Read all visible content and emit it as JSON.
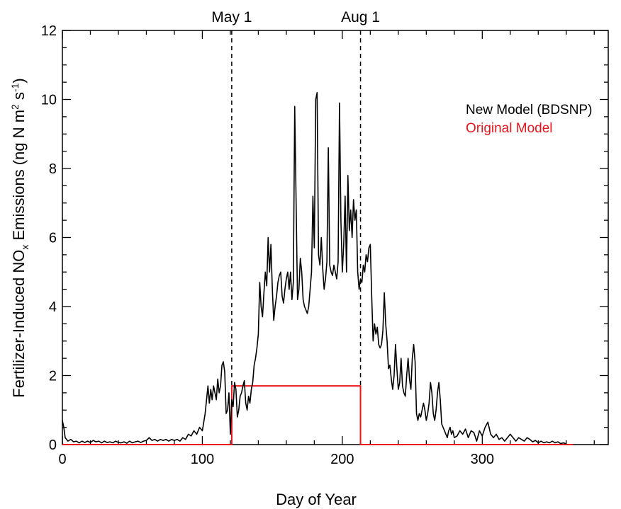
{
  "chart_data": {
    "type": "line",
    "xlabel": "Day of Year",
    "ylabel": "Fertilizer-Induced NOx Emissions (ng N m2 s-1)",
    "ylabel_parts": {
      "main": "Fertilizer-Induced  NO",
      "sub": "x",
      "mid": " Emissions (ng N m",
      "sup1": "2",
      "mid2": " s",
      "sup2": "-1",
      "end": ")"
    },
    "xlim": [
      0,
      390
    ],
    "ylim": [
      0,
      12
    ],
    "x_ticks": [
      0,
      100,
      200,
      300
    ],
    "x_tick_labels": [
      "0",
      "100",
      "200",
      "300"
    ],
    "y_ticks": [
      0,
      2,
      4,
      6,
      8,
      10,
      12
    ],
    "y_tick_labels": [
      "0",
      "2",
      "4",
      "6",
      "8",
      "10",
      "12"
    ],
    "grid": false,
    "legend_position": "top-right",
    "markers": [
      {
        "label": "May 1",
        "x": 121
      },
      {
        "label": "Aug 1",
        "x": 213
      }
    ],
    "series": [
      {
        "name": "New Model (BDSNP)",
        "color": "#000000",
        "points": [
          [
            0,
            0.7
          ],
          [
            1,
            0.5
          ],
          [
            2,
            0.2
          ],
          [
            4,
            0.1
          ],
          [
            6,
            0.15
          ],
          [
            8,
            0.08
          ],
          [
            10,
            0.1
          ],
          [
            12,
            0.05
          ],
          [
            14,
            0.1
          ],
          [
            16,
            0.06
          ],
          [
            18,
            0.1
          ],
          [
            20,
            0.06
          ],
          [
            22,
            0.12
          ],
          [
            24,
            0.08
          ],
          [
            26,
            0.1
          ],
          [
            28,
            0.05
          ],
          [
            30,
            0.1
          ],
          [
            32,
            0.06
          ],
          [
            34,
            0.08
          ],
          [
            36,
            0.05
          ],
          [
            38,
            0.1
          ],
          [
            40,
            0.06
          ],
          [
            42,
            0.05
          ],
          [
            44,
            0.08
          ],
          [
            46,
            0.04
          ],
          [
            48,
            0.1
          ],
          [
            50,
            0.05
          ],
          [
            52,
            0.08
          ],
          [
            54,
            0.1
          ],
          [
            56,
            0.06
          ],
          [
            58,
            0.1
          ],
          [
            60,
            0.12
          ],
          [
            62,
            0.2
          ],
          [
            64,
            0.12
          ],
          [
            66,
            0.15
          ],
          [
            68,
            0.1
          ],
          [
            70,
            0.15
          ],
          [
            72,
            0.12
          ],
          [
            74,
            0.15
          ],
          [
            76,
            0.1
          ],
          [
            78,
            0.15
          ],
          [
            80,
            0.12
          ],
          [
            82,
            0.15
          ],
          [
            84,
            0.1
          ],
          [
            86,
            0.2
          ],
          [
            88,
            0.15
          ],
          [
            90,
            0.3
          ],
          [
            92,
            0.25
          ],
          [
            94,
            0.4
          ],
          [
            96,
            0.3
          ],
          [
            98,
            0.5
          ],
          [
            100,
            0.4
          ],
          [
            102,
            0.9
          ],
          [
            104,
            1.7
          ],
          [
            105,
            1.2
          ],
          [
            106,
            1.6
          ],
          [
            107,
            1.3
          ],
          [
            108,
            1.7
          ],
          [
            109,
            1.5
          ],
          [
            110,
            1.3
          ],
          [
            111,
            1.9
          ],
          [
            112,
            1.5
          ],
          [
            113,
            1.7
          ],
          [
            114,
            2.3
          ],
          [
            115,
            2.4
          ],
          [
            116,
            2.1
          ],
          [
            117,
            0.9
          ],
          [
            118,
            1.0
          ],
          [
            119,
            1.5
          ],
          [
            120,
            0.3
          ],
          [
            121,
            1.3
          ],
          [
            122,
            1.1
          ],
          [
            123,
            1.8
          ],
          [
            124,
            1.6
          ],
          [
            125,
            0.8
          ],
          [
            126,
            1.0
          ],
          [
            127,
            1.4
          ],
          [
            128,
            1.5
          ],
          [
            129,
            1.7
          ],
          [
            130,
            1.85
          ],
          [
            131,
            1.2
          ],
          [
            132,
            1.0
          ],
          [
            133,
            1.4
          ],
          [
            134,
            1.2
          ],
          [
            135,
            1.6
          ],
          [
            136,
            1.8
          ],
          [
            137,
            2.3
          ],
          [
            138,
            2.5
          ],
          [
            139,
            2.8
          ],
          [
            140,
            3.2
          ],
          [
            141,
            4.7
          ],
          [
            142,
            4.0
          ],
          [
            143,
            3.7
          ],
          [
            144,
            4.4
          ],
          [
            145,
            5.0
          ],
          [
            146,
            4.6
          ],
          [
            147,
            6.0
          ],
          [
            148,
            5.0
          ],
          [
            149,
            5.8
          ],
          [
            150,
            4.5
          ],
          [
            151,
            3.6
          ],
          [
            152,
            4.0
          ],
          [
            153,
            4.3
          ],
          [
            154,
            4.7
          ],
          [
            155,
            4.9
          ],
          [
            156,
            5.0
          ],
          [
            157,
            4.3
          ],
          [
            158,
            4.1
          ],
          [
            159,
            4.5
          ],
          [
            160,
            4.8
          ],
          [
            161,
            5.0
          ],
          [
            162,
            4.5
          ],
          [
            163,
            5.0
          ],
          [
            164,
            4.2
          ],
          [
            165,
            4.7
          ],
          [
            166,
            9.8
          ],
          [
            167,
            7.0
          ],
          [
            168,
            4.2
          ],
          [
            169,
            4.5
          ],
          [
            170,
            5.4
          ],
          [
            171,
            5.0
          ],
          [
            172,
            4.2
          ],
          [
            173,
            4.0
          ],
          [
            174,
            3.9
          ],
          [
            175,
            3.8
          ],
          [
            176,
            4.0
          ],
          [
            177,
            4.5
          ],
          [
            178,
            5.0
          ],
          [
            179,
            7.2
          ],
          [
            180,
            5.7
          ],
          [
            181,
            10.0
          ],
          [
            182,
            10.2
          ],
          [
            183,
            5.5
          ],
          [
            184,
            5.2
          ],
          [
            185,
            6.0
          ],
          [
            186,
            5.1
          ],
          [
            187,
            4.5
          ],
          [
            188,
            4.8
          ],
          [
            189,
            5.3
          ],
          [
            190,
            8.6
          ],
          [
            191,
            5.2
          ],
          [
            192,
            5.0
          ],
          [
            193,
            4.9
          ],
          [
            194,
            5.2
          ],
          [
            195,
            5.0
          ],
          [
            196,
            4.8
          ],
          [
            197,
            5.3
          ],
          [
            198,
            9.9
          ],
          [
            199,
            6.5
          ],
          [
            200,
            5.0
          ],
          [
            201,
            5.8
          ],
          [
            202,
            7.2
          ],
          [
            203,
            5.0
          ],
          [
            204,
            7.8
          ],
          [
            205,
            6.2
          ],
          [
            206,
            6.8
          ],
          [
            207,
            6.0
          ],
          [
            208,
            7.1
          ],
          [
            209,
            6.5
          ],
          [
            210,
            6.8
          ],
          [
            211,
            5.0
          ],
          [
            212,
            4.5
          ],
          [
            213,
            4.8
          ],
          [
            214,
            4.7
          ],
          [
            215,
            5.2
          ],
          [
            216,
            5.0
          ],
          [
            217,
            5.5
          ],
          [
            218,
            5.3
          ],
          [
            219,
            5.7
          ],
          [
            220,
            5.8
          ],
          [
            221,
            4.3
          ],
          [
            222,
            3.0
          ],
          [
            223,
            3.5
          ],
          [
            224,
            3.2
          ],
          [
            225,
            3.4
          ],
          [
            226,
            2.9
          ],
          [
            227,
            2.8
          ],
          [
            228,
            2.9
          ],
          [
            229,
            3.3
          ],
          [
            230,
            4.4
          ],
          [
            231,
            3.5
          ],
          [
            232,
            3.0
          ],
          [
            233,
            2.2
          ],
          [
            234,
            2.3
          ],
          [
            235,
            1.9
          ],
          [
            236,
            1.6
          ],
          [
            237,
            2.0
          ],
          [
            238,
            2.9
          ],
          [
            239,
            2.2
          ],
          [
            240,
            1.6
          ],
          [
            241,
            1.8
          ],
          [
            242,
            2.5
          ],
          [
            243,
            1.7
          ],
          [
            244,
            1.5
          ],
          [
            245,
            1.4
          ],
          [
            246,
            2.0
          ],
          [
            247,
            2.5
          ],
          [
            248,
            1.9
          ],
          [
            249,
            1.6
          ],
          [
            250,
            2.5
          ],
          [
            251,
            2.9
          ],
          [
            252,
            2.4
          ],
          [
            253,
            0.9
          ],
          [
            254,
            0.7
          ],
          [
            255,
            0.9
          ],
          [
            256,
            0.8
          ],
          [
            257,
            1.0
          ],
          [
            258,
            1.2
          ],
          [
            259,
            1.0
          ],
          [
            260,
            0.7
          ],
          [
            261,
            0.9
          ],
          [
            262,
            1.2
          ],
          [
            263,
            1.8
          ],
          [
            264,
            1.5
          ],
          [
            265,
            0.9
          ],
          [
            266,
            0.7
          ],
          [
            267,
            1.0
          ],
          [
            268,
            1.5
          ],
          [
            269,
            1.8
          ],
          [
            270,
            1.3
          ],
          [
            271,
            0.6
          ],
          [
            272,
            0.5
          ],
          [
            273,
            0.4
          ],
          [
            274,
            0.3
          ],
          [
            275,
            0.2
          ],
          [
            276,
            0.4
          ],
          [
            277,
            0.5
          ],
          [
            278,
            0.3
          ],
          [
            279,
            0.4
          ],
          [
            280,
            0.2
          ],
          [
            282,
            0.25
          ],
          [
            284,
            0.4
          ],
          [
            286,
            0.3
          ],
          [
            288,
            0.45
          ],
          [
            290,
            0.2
          ],
          [
            292,
            0.4
          ],
          [
            294,
            0.35
          ],
          [
            296,
            0.1
          ],
          [
            298,
            0.4
          ],
          [
            300,
            0.25
          ],
          [
            302,
            0.5
          ],
          [
            304,
            0.65
          ],
          [
            306,
            0.3
          ],
          [
            308,
            0.2
          ],
          [
            310,
            0.3
          ],
          [
            312,
            0.15
          ],
          [
            314,
            0.2
          ],
          [
            316,
            0.1
          ],
          [
            318,
            0.2
          ],
          [
            320,
            0.3
          ],
          [
            322,
            0.2
          ],
          [
            324,
            0.1
          ],
          [
            326,
            0.2
          ],
          [
            328,
            0.15
          ],
          [
            330,
            0.1
          ],
          [
            332,
            0.2
          ],
          [
            334,
            0.15
          ],
          [
            336,
            0.08
          ],
          [
            338,
            0.12
          ],
          [
            340,
            0.05
          ],
          [
            342,
            0.1
          ],
          [
            344,
            0.05
          ],
          [
            346,
            0.08
          ],
          [
            348,
            0.05
          ],
          [
            350,
            0.1
          ],
          [
            352,
            0.05
          ],
          [
            354,
            0.08
          ],
          [
            356,
            0.03
          ],
          [
            358,
            0.05
          ],
          [
            360,
            0.02
          ]
        ]
      },
      {
        "name": "Original Model",
        "color": "#e8161b",
        "points": [
          [
            0,
            0
          ],
          [
            121,
            0
          ],
          [
            121,
            1.7
          ],
          [
            213,
            1.7
          ],
          [
            213,
            0
          ],
          [
            365,
            0
          ]
        ]
      }
    ]
  }
}
